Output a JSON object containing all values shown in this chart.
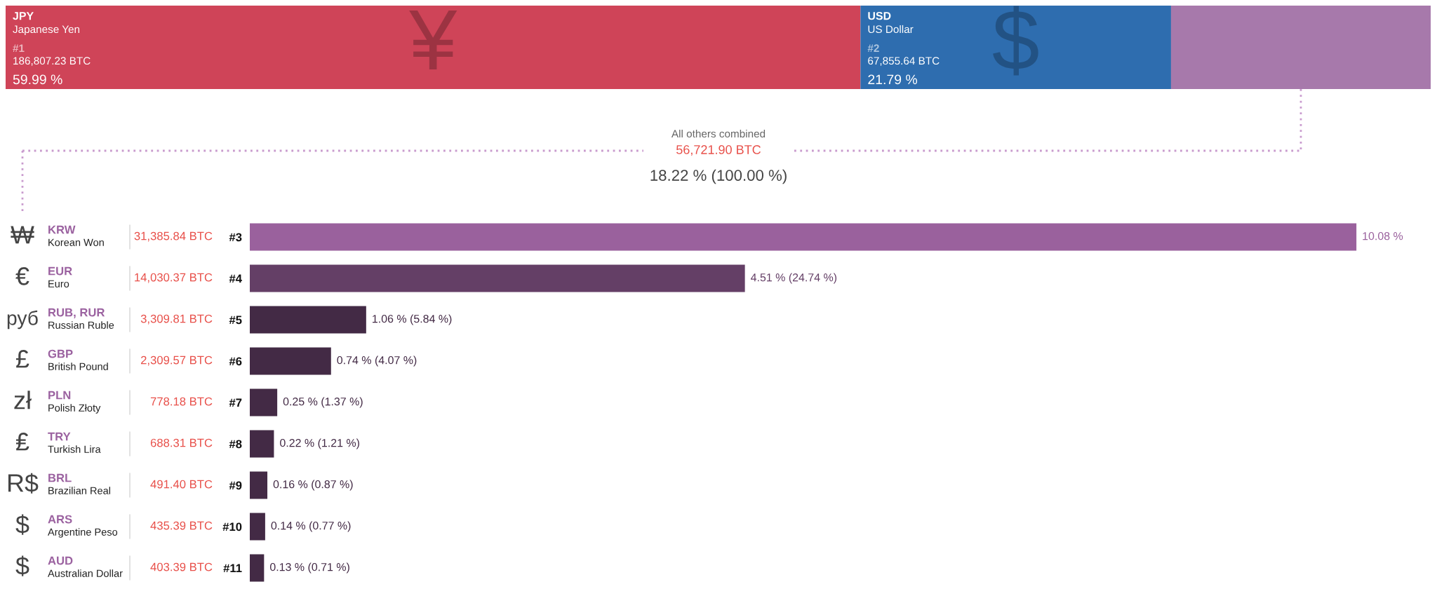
{
  "chart_data": [
    {
      "type": "bar",
      "orientation": "horizontal",
      "stacked": true,
      "categories": [
        null
      ],
      "tick_labels": false,
      "series": [
        {
          "name": "JPY",
          "color": "#cf4458",
          "values": [
            59.99
          ],
          "value_labels": [
            "59.99 %"
          ]
        },
        {
          "name": "USD",
          "color": "#2e6daf",
          "values": [
            21.79
          ],
          "value_labels": [
            "21.79 %"
          ]
        },
        {
          "color": "#a779ab",
          "values": [
            18.22
          ]
        }
      ],
      "annotations": [
        "¥",
        "Japanese Yen",
        "#1",
        "186,807.23 BTC",
        "$",
        "US Dollar",
        "#2",
        "67,855.64 BTC"
      ]
    },
    {
      "type": "other",
      "title": "All others combined",
      "annotations": [
        "56,721.90 BTC",
        "18.22 % (100.00 %)"
      ]
    },
    {
      "type": "bar",
      "orientation": "horizontal",
      "categories": [
        "#3",
        "#4",
        "#5",
        "#6",
        "#7",
        "#8",
        "#9",
        "#10",
        "#11"
      ],
      "values": [
        10.08,
        4.51,
        1.06,
        0.74,
        0.25,
        0.22,
        0.16,
        0.14,
        0.13
      ],
      "colors": [
        "#9a619d",
        "#643f66",
        "#432a45",
        "#432a45",
        "#432a45",
        "#432a45",
        "#432a45",
        "#432a45",
        "#432a45"
      ],
      "value_labels": [
        "10.08 %",
        "4.51 % (24.74 %)",
        "1.06 % (5.84 %)",
        "0.74 % (4.07 %)",
        "0.25 % (1.37 %)",
        "0.22 % (1.21 %)",
        "0.16 % (0.87 %)",
        "0.14 % (0.77 %)",
        "0.13 % (0.71 %)"
      ],
      "tick_labels": "y",
      "annotations": [
        "₩",
        "KRW",
        "Korean Won",
        "31,385.84 BTC",
        "€",
        "EUR",
        "Euro",
        "14,030.37 BTC",
        "руб",
        "RUB, RUR",
        "Russian Ruble",
        "3,309.81 BTC",
        "£",
        "GBP",
        "British Pound",
        "2,309.57 BTC",
        "zł",
        "PLN",
        "Polish Złoty",
        "778.18 BTC",
        "₤",
        "TRY",
        "Turkish Lira",
        "688.31 BTC",
        "R$",
        "BRL",
        "Brazilian Real",
        "491.40 BTC",
        "$",
        "ARS",
        "Argentine Peso",
        "435.39 BTC",
        "$",
        "AUD",
        "Australian Dollar",
        "403.39 BTC"
      ]
    }
  ]
}
